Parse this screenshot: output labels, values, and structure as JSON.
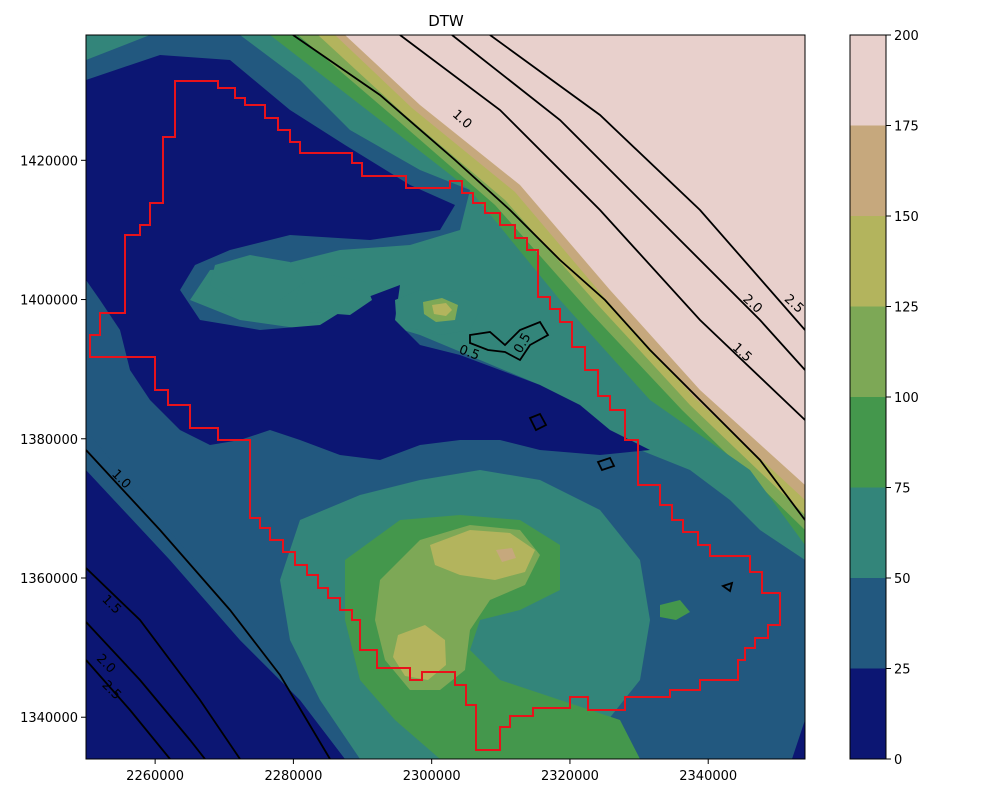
{
  "chart_data": {
    "type": "heatmap",
    "title": "DTW",
    "x_ticks": [
      2260000,
      2280000,
      2300000,
      2320000,
      2340000
    ],
    "x_tick_labels": [
      "2260000",
      "2280000",
      "2300000",
      "2320000",
      "2340000"
    ],
    "y_ticks": [
      1340000,
      1360000,
      1380000,
      1400000,
      1420000
    ],
    "y_tick_labels": [
      "1340000",
      "1360000",
      "1380000",
      "1400000",
      "1420000"
    ],
    "xlim": [
      2250000,
      2354000
    ],
    "ylim": [
      1334000,
      1438000
    ],
    "colorbar": {
      "levels": [
        0,
        25,
        50,
        75,
        100,
        125,
        150,
        175,
        200
      ],
      "tick_labels": [
        "0",
        "25",
        "50",
        "75",
        "100",
        "125",
        "150",
        "175",
        "200"
      ],
      "colors": [
        "#0c1673",
        "#22587f",
        "#33857a",
        "#44974c",
        "#7da856",
        "#b3b45d",
        "#c6a87d",
        "#e8d0cc"
      ]
    },
    "contour_labels": [
      {
        "text": "1.0",
        "x": 2304500,
        "y": 1426000,
        "rot": 42
      },
      {
        "text": "2.0",
        "x": 2346500,
        "y": 1399500,
        "rot": 42
      },
      {
        "text": "2.5",
        "x": 2352500,
        "y": 1399500,
        "rot": 42
      },
      {
        "text": "1.5",
        "x": 2345000,
        "y": 1392500,
        "rot": 42
      },
      {
        "text": "0.5",
        "x": 2305500,
        "y": 1392500,
        "rot": 20
      },
      {
        "text": "0.5",
        "x": 2313000,
        "y": 1393800,
        "rot": -60
      },
      {
        "text": "1.0",
        "x": 2255200,
        "y": 1374300,
        "rot": 45
      },
      {
        "text": "1.5",
        "x": 2253800,
        "y": 1356300,
        "rot": 45
      },
      {
        "text": "2.0",
        "x": 2253000,
        "y": 1347800,
        "rot": 45
      },
      {
        "text": "2.5",
        "x": 2253800,
        "y": 1344000,
        "rot": 45
      }
    ]
  }
}
